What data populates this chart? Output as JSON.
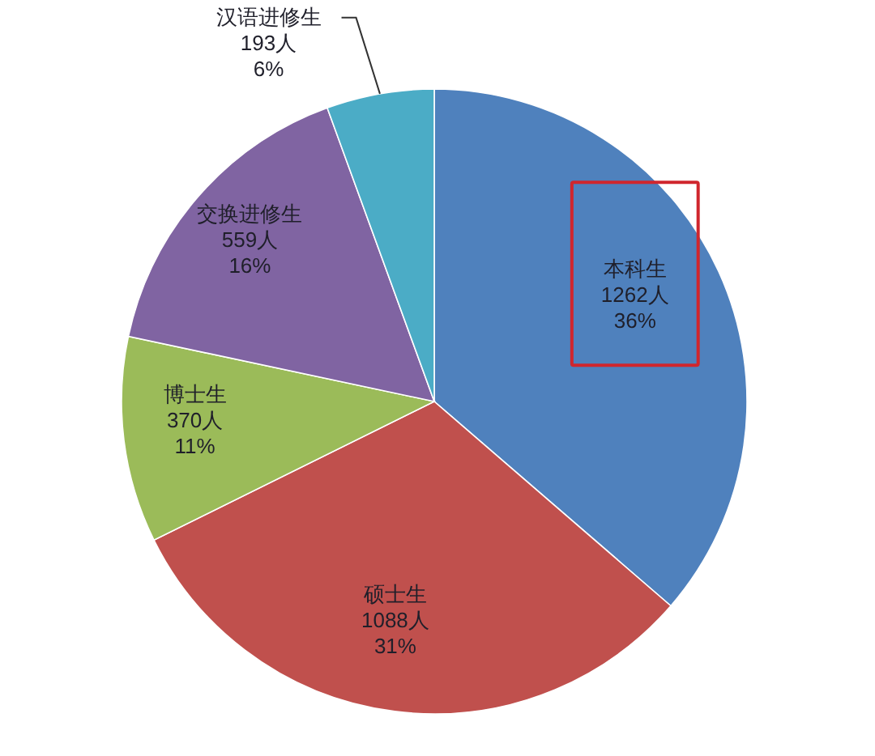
{
  "chart_data": {
    "type": "pie",
    "categories": [
      "本科生",
      "硕士生",
      "博士生",
      "交换进修生",
      "汉语进修生"
    ],
    "values": [
      1262,
      1088,
      370,
      559,
      193
    ],
    "value_labels": [
      "1262人\n36%",
      "1088人\n31%",
      "370人\n11%",
      "559人\n16%",
      "193人\n6%"
    ],
    "colors": [
      "#4f81bd",
      "#c0504d",
      "#9bbb59",
      "#8064a2",
      "#4bacc6"
    ]
  }
}
